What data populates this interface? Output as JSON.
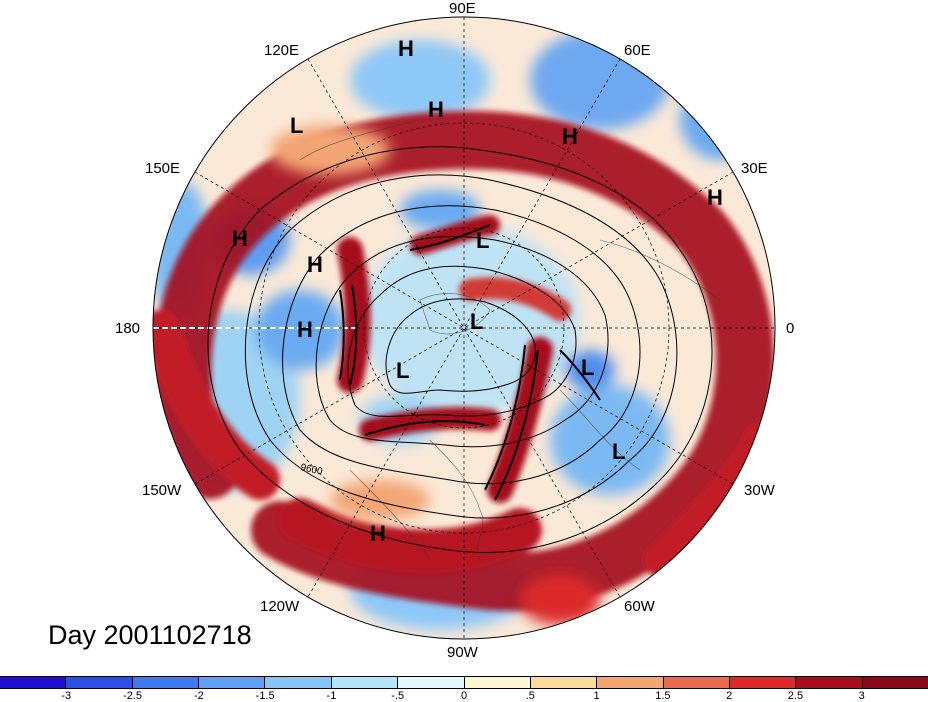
{
  "title": "Day 2001102718",
  "lon_labels": [
    "90E",
    "60E",
    "120E",
    "30E",
    "150E",
    "180",
    "0",
    "150W",
    "30W",
    "120W",
    "60W",
    "90W"
  ],
  "contour_label": "9600",
  "pressure_centers": [
    "H",
    "H",
    "L",
    "H",
    "H",
    "H",
    "L",
    "H",
    "H",
    "L",
    "H",
    "L",
    "L",
    "L",
    "H"
  ],
  "colorbar": {
    "ticks": [
      "-3",
      "-2.5",
      "-2",
      "-1.5",
      "-1",
      "-.5",
      "0",
      ".5",
      "1",
      "1.5",
      "2",
      "2.5",
      "3"
    ],
    "colors": [
      "#1e0fd0",
      "#2d4fe6",
      "#3f79ee",
      "#5fa0f5",
      "#86c5f8",
      "#b3e6fb",
      "#e3f7fc",
      "#fdf6d3",
      "#f9dc9c",
      "#f4a574",
      "#ec6b4d",
      "#dc2a2a",
      "#a50f1c",
      "#8b0a1a"
    ]
  }
}
